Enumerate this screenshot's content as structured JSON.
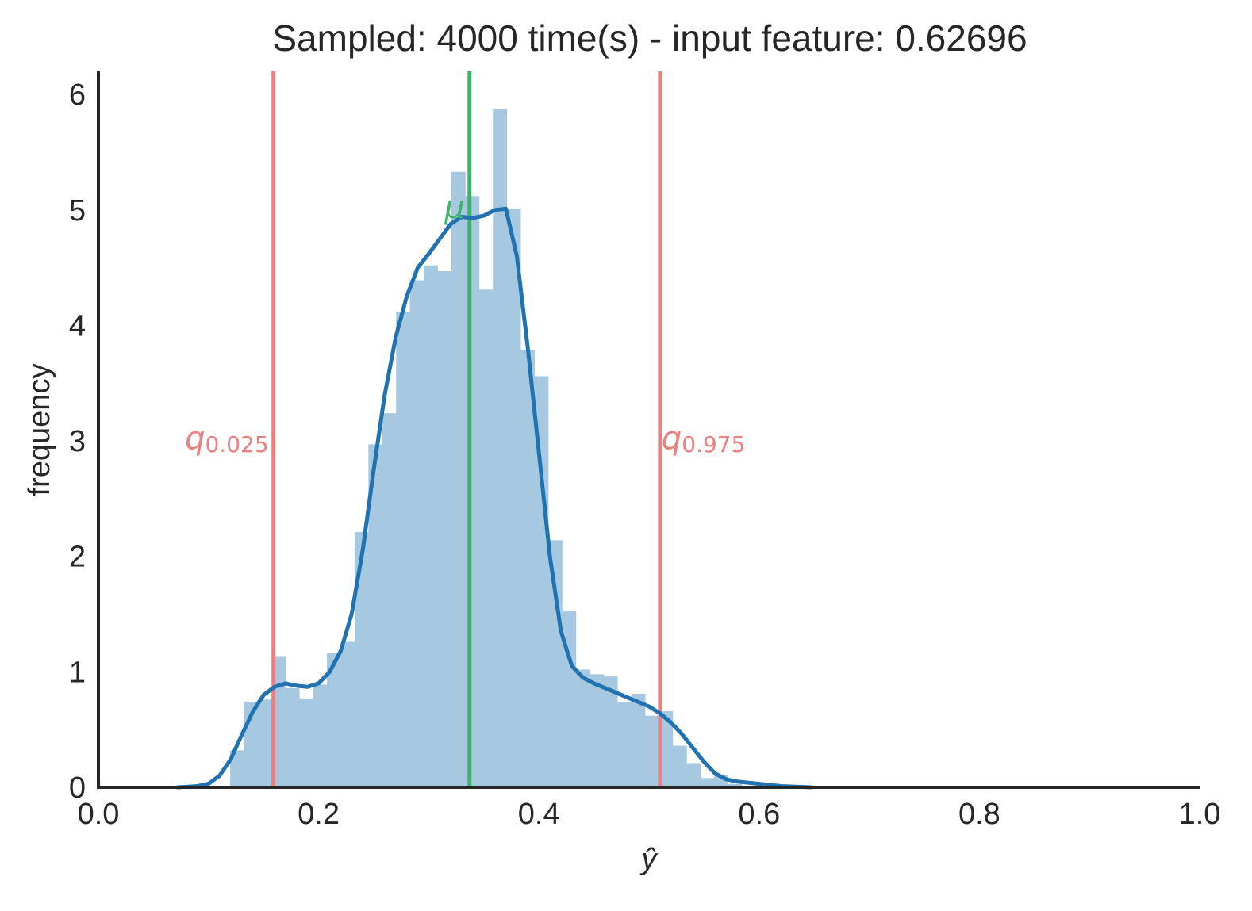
{
  "chart_data": {
    "type": "bar",
    "title": "Sampled: 4000 time(s)  -  input feature: 0.62696",
    "xlabel": "ŷ",
    "ylabel": "frequency",
    "xlim": [
      0.0,
      1.0
    ],
    "ylim": [
      0,
      6.2
    ],
    "grid": false,
    "xticks": [
      "0.0",
      "0.2",
      "0.4",
      "0.6",
      "0.8",
      "1.0"
    ],
    "yticks": [
      "0",
      "1",
      "2",
      "3",
      "4",
      "5",
      "6"
    ],
    "histogram": {
      "bin_start": 0.1196,
      "bin_width": 0.01256,
      "values": [
        0.32,
        0.74,
        0.76,
        1.13,
        0.86,
        0.77,
        0.89,
        1.16,
        1.26,
        2.21,
        2.97,
        3.24,
        4.12,
        4.39,
        4.52,
        4.47,
        5.33,
        5.12,
        4.31,
        5.87,
        5.01,
        3.79,
        3.56,
        2.14,
        1.53,
        1.02,
        0.98,
        0.96,
        0.74,
        0.81,
        0.62,
        0.66,
        0.36,
        0.21,
        0.08,
        0.11,
        0.03
      ],
      "color": "#a6c8e1"
    },
    "kde": {
      "x": [
        0.072,
        0.09,
        0.1,
        0.11,
        0.12,
        0.13,
        0.14,
        0.15,
        0.16,
        0.17,
        0.18,
        0.19,
        0.2,
        0.21,
        0.22,
        0.23,
        0.24,
        0.25,
        0.26,
        0.27,
        0.28,
        0.29,
        0.3,
        0.31,
        0.32,
        0.33,
        0.34,
        0.35,
        0.36,
        0.37,
        0.38,
        0.39,
        0.4,
        0.41,
        0.42,
        0.43,
        0.44,
        0.45,
        0.46,
        0.47,
        0.48,
        0.49,
        0.5,
        0.51,
        0.52,
        0.53,
        0.54,
        0.55,
        0.56,
        0.57,
        0.58,
        0.6,
        0.62,
        0.648
      ],
      "y": [
        0.0,
        0.01,
        0.03,
        0.1,
        0.24,
        0.45,
        0.65,
        0.8,
        0.87,
        0.9,
        0.88,
        0.87,
        0.9,
        1.0,
        1.18,
        1.5,
        2.05,
        2.75,
        3.4,
        3.9,
        4.25,
        4.5,
        4.62,
        4.75,
        4.88,
        4.94,
        4.93,
        4.95,
        5.0,
        5.01,
        4.6,
        3.8,
        2.9,
        2.0,
        1.35,
        1.05,
        0.95,
        0.9,
        0.86,
        0.82,
        0.78,
        0.74,
        0.7,
        0.64,
        0.56,
        0.46,
        0.34,
        0.22,
        0.12,
        0.07,
        0.05,
        0.03,
        0.01,
        0.0
      ],
      "color": "#2073b0"
    },
    "vlines": [
      {
        "label": "q",
        "subscript": "0.025",
        "x": 0.159,
        "color": "#ec7f7f",
        "label_y": 3.0
      },
      {
        "label": "μ",
        "subscript": "",
        "x": 0.337,
        "color": "#3bb56b",
        "label_y": 5.0
      },
      {
        "label": "q",
        "subscript": "0.975",
        "x": 0.51,
        "color": "#ec7f7f",
        "label_y": 3.0
      }
    ]
  }
}
